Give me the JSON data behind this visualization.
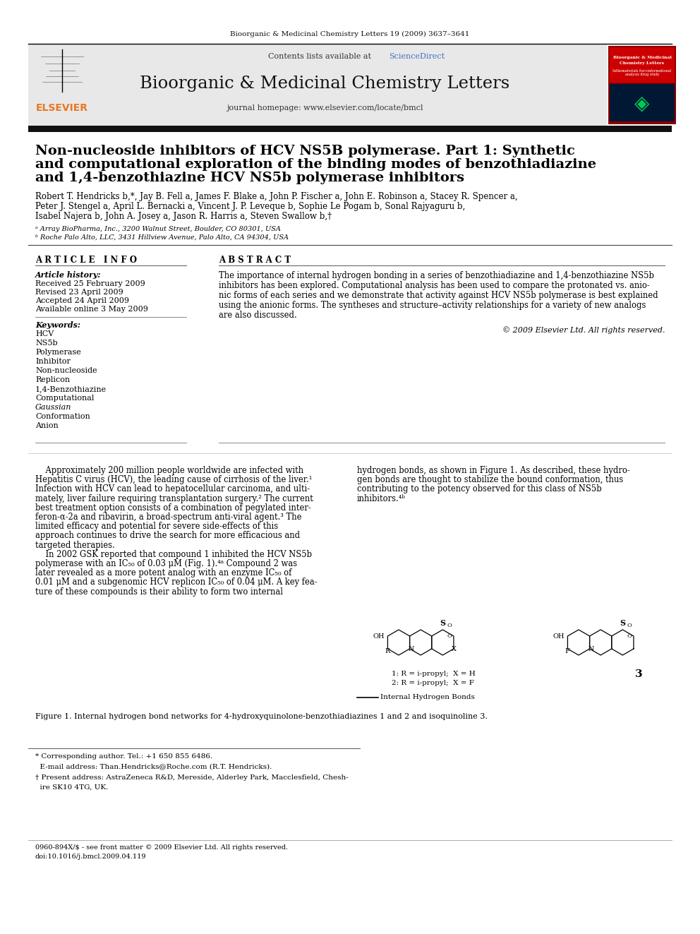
{
  "journal_ref": "Bioorganic & Medicinal Chemistry Letters 19 (2009) 3637–3641",
  "journal_name": "Bioorganic & Medicinal Chemistry Letters",
  "journal_homepage": "journal homepage: www.elsevier.com/locate/bmcl",
  "contents_line": "Contents lists available at ",
  "sciencedirect_text": "ScienceDirect",
  "title_line1": "Non-nucleoside inhibitors of HCV NS5B polymerase. Part 1: Synthetic",
  "title_line2": "and computational exploration of the binding modes of benzothiadiazine",
  "title_line3": "and 1,4-benzothiazine HCV NS5b polymerase inhibitors",
  "authors_line1": "Robert T. Hendricks b,*, Jay B. Fell a, James F. Blake a, John P. Fischer a, John E. Robinson a, Stacey R. Spencer a,",
  "authors_line2": "Peter J. Stengel a, April L. Bernacki a, Vincent J. P. Leveque b, Sophie Le Pogam b, Sonal Rajyaguru b,",
  "authors_line3": "Isabel Najera b, John A. Josey a, Jason R. Harris a, Steven Swallow b,†",
  "affil_a": "ᵃ Array BioPharma, Inc., 3200 Walnut Street, Boulder, CO 80301, USA",
  "affil_b": "ᵇ Roche Palo Alto, LLC, 3431 Hillview Avenue, Palo Alto, CA 94304, USA",
  "article_info_header": "A R T I C L E   I N F O",
  "abstract_header": "A B S T R A C T",
  "article_history_label": "Article history:",
  "received": "Received 25 February 2009",
  "revised": "Revised 23 April 2009",
  "accepted": "Accepted 24 April 2009",
  "available": "Available online 3 May 2009",
  "keywords_label": "Keywords:",
  "keywords": [
    "HCV",
    "NS5b",
    "Polymerase",
    "Inhibitor",
    "Non-nucleoside",
    "Replicon",
    "1,4-Benzothiazine",
    "Computational",
    "Gaussian",
    "Conformation",
    "Anion"
  ],
  "abstract_lines": [
    "The importance of internal hydrogen bonding in a series of benzothiadiazine and 1,4-benzothiazine NS5b",
    "inhibitors has been explored. Computational analysis has been used to compare the protonated vs. anio-",
    "nic forms of each series and we demonstrate that activity against HCV NS5b polymerase is best explained",
    "using the anionic forms. The syntheses and structure–activity relationships for a variety of new analogs",
    "are also discussed."
  ],
  "copyright": "© 2009 Elsevier Ltd. All rights reserved.",
  "body_col1_lines": [
    "    Approximately 200 million people worldwide are infected with",
    "Hepatitis C virus (HCV), the leading cause of cirrhosis of the liver.¹",
    "Infection with HCV can lead to hepatocellular carcinoma, and ulti-",
    "mately, liver failure requiring transplantation surgery.² The current",
    "best treatment option consists of a combination of pegylated inter-",
    "feron-α-2a and ribavirin, a broad-spectrum anti-viral agent.³ The",
    "limited efficacy and potential for severe side-effects of this",
    "approach continues to drive the search for more efficacious and",
    "targeted therapies.",
    "    In 2002 GSK reported that compound 1 inhibited the HCV NS5b",
    "polymerase with an IC₅₀ of 0.03 μM (Fig. 1).⁴ᵃ Compound 2 was",
    "later revealed as a more potent analog with an enzyme IC₅₀ of",
    "0.01 μM and a subgenomic HCV replicon IC₅₀ of 0.04 μM. A key fea-",
    "ture of these compounds is their ability to form two internal"
  ],
  "body_col2_lines": [
    "hydrogen bonds, as shown in Figure 1. As described, these hydro-",
    "gen bonds are thought to stabilize the bound conformation, thus",
    "contributing to the potency observed for this class of NS5b",
    "inhibitors.⁴ᵇ"
  ],
  "compound_label1": "1: R = i-propyl;  X = H",
  "compound_label2": "2: R = i-propyl;  X = F",
  "compound3_label": "3",
  "ih_bonds_legend": "— Internal Hydrogen Bonds",
  "fig1_caption": "Figure 1. Internal hydrogen bond networks for 4-hydroxyquinolone-benzothiadiazines 1 and 2 and isoquinoline 3.",
  "footnote_star": "* Corresponding author. Tel.: +1 650 855 6486.",
  "footnote_email": "  E-mail address: Than.Hendricks@Roche.com (R.T. Hendricks).",
  "footnote_dagger": "† Present address: AstraZeneca R&D, Mereside, Alderley Park, Macclesfield, Chesh-",
  "footnote_dagger2": "  ire SK10 4TG, UK.",
  "issn_line": "0960-894X/$ - see front matter © 2009 Elsevier Ltd. All rights reserved.",
  "doi_line": "doi:10.1016/j.bmcl.2009.04.119",
  "elsevier_orange": "#E87722",
  "sciencedirect_blue": "#4472C4",
  "header_bg": "#e8e8e8",
  "cover_dark_red": "#8B0000",
  "cover_red": "#cc0000",
  "cover_dark_blue": "#001833"
}
